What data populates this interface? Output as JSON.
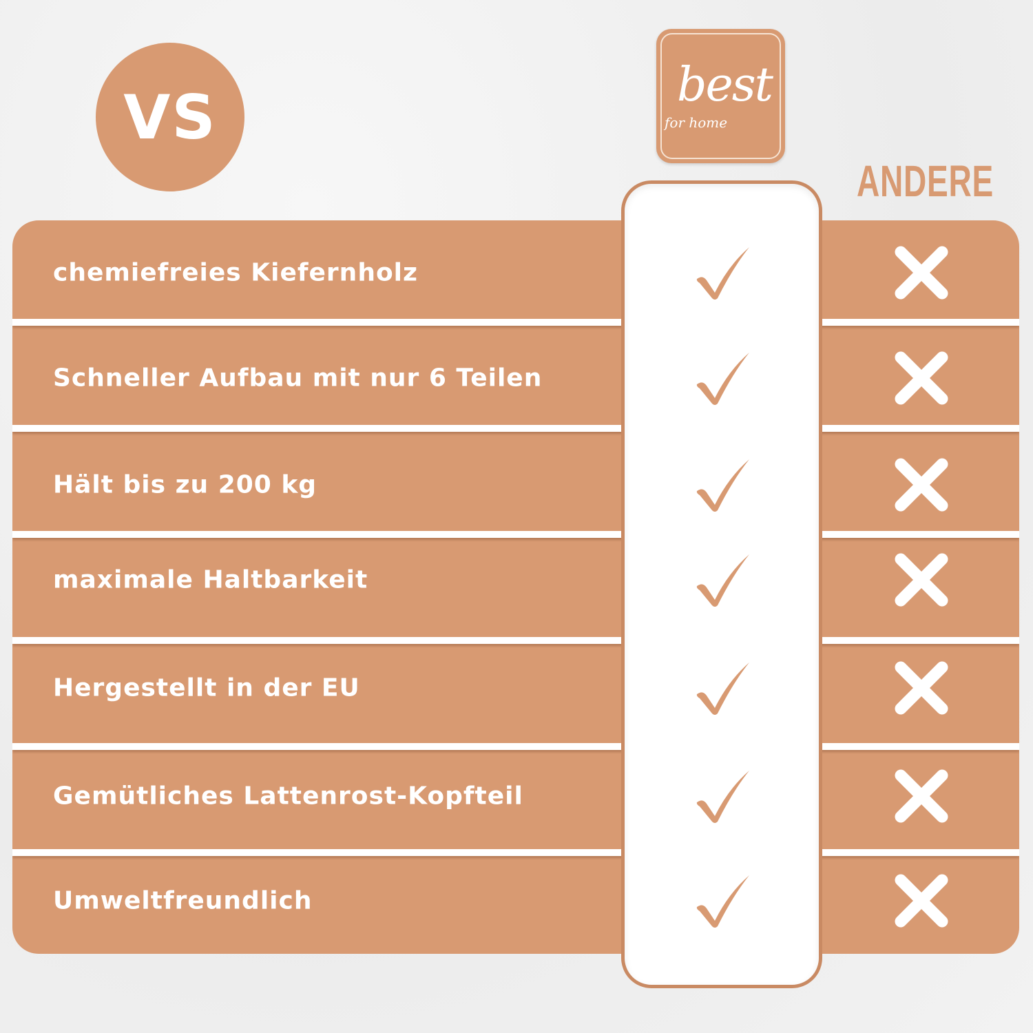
{
  "header": {
    "vs_label": "VS",
    "brand_logo_text": "best for home",
    "competitor_label": "ANDERE"
  },
  "colors": {
    "accent": "#d89a72",
    "border": "#c98a63",
    "background": "#f0f0f0"
  },
  "rows": [
    {
      "label": "chemiefreies Kiefernholz",
      "brand": "check-icon",
      "others": "cross-icon"
    },
    {
      "label": "Schneller Aufbau mit nur 6 Teilen",
      "brand": "check-icon",
      "others": "cross-icon"
    },
    {
      "label": "Hält bis zu 200 kg",
      "brand": "check-icon",
      "others": "cross-icon"
    },
    {
      "label": "maximale Haltbarkeit",
      "brand": "check-icon",
      "others": "cross-icon"
    },
    {
      "label": "Hergestellt in der EU",
      "brand": "check-icon",
      "others": "cross-icon"
    },
    {
      "label": "Gemütliches Lattenrost-Kopfteil",
      "brand": "check-icon",
      "others": "cross-icon"
    },
    {
      "label": "Umweltfreundlich",
      "brand": "check-icon",
      "others": "cross-icon"
    }
  ]
}
